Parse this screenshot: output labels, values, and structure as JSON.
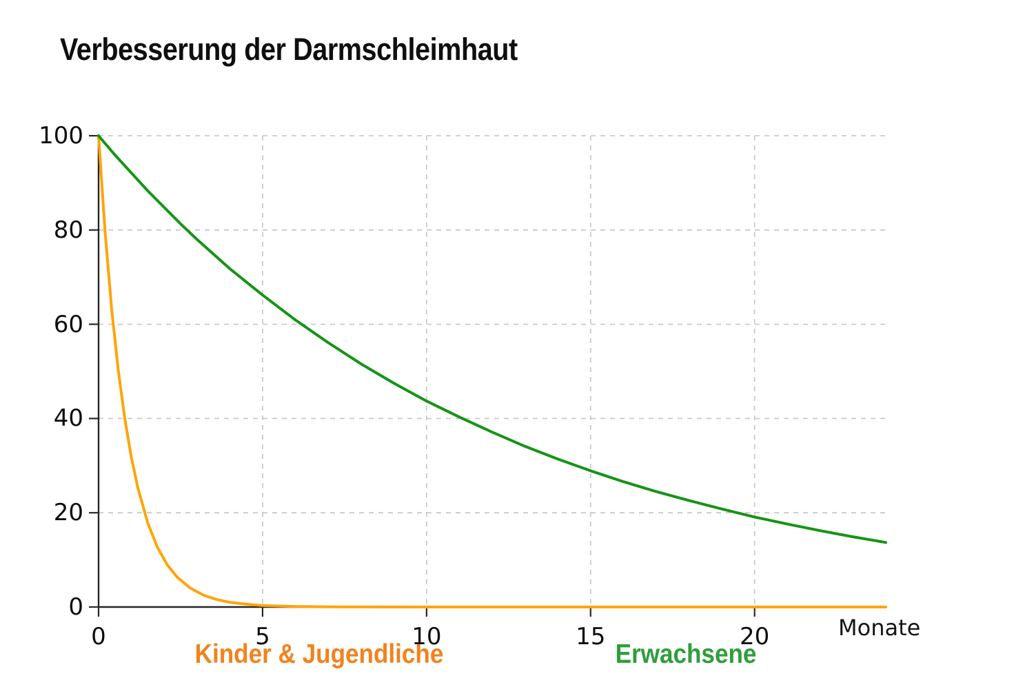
{
  "title": "Verbesserung der Darmschleimhaut",
  "chart_data": {
    "type": "line",
    "title": "Verbesserung der Darmschleimhaut",
    "xlabel": "Monate",
    "ylabel": "",
    "xlim": [
      0,
      24
    ],
    "ylim": [
      0,
      100
    ],
    "x_ticks": [
      0,
      5,
      10,
      15,
      20
    ],
    "y_ticks": [
      0,
      20,
      40,
      60,
      80,
      100
    ],
    "grid": true,
    "grid_style": "dashed",
    "grid_color": "#c9c9c9",
    "axis_color": "#262626",
    "legend_position": "below-axis",
    "series": [
      {
        "name": "Kinder & Jugendliche",
        "color": "#FFA409",
        "label_color": "#F2821E",
        "x": [
          0,
          0.2,
          0.4,
          0.6,
          0.8,
          1.0,
          1.2,
          1.5,
          1.8,
          2.1,
          2.4,
          2.8,
          3.2,
          3.6,
          4.0,
          4.5,
          5.0,
          6.0,
          7.0,
          8.0,
          10,
          14,
          18,
          21,
          24
        ],
        "values": [
          100,
          79.5,
          63.1,
          50.2,
          39.9,
          31.7,
          25.2,
          17.8,
          12.6,
          8.9,
          6.3,
          4.0,
          2.5,
          1.6,
          1.0,
          0.6,
          0.3,
          0.1,
          0.05,
          0.02,
          0,
          0,
          0,
          0,
          0
        ]
      },
      {
        "name": "Erwachsene",
        "color": "#159415",
        "label_color": "#2E9E3C",
        "x": [
          0,
          0.5,
          1,
          1.5,
          2,
          2.5,
          3,
          4,
          5,
          6,
          7,
          8,
          9,
          10,
          11,
          12,
          13,
          14,
          15,
          16,
          17,
          18,
          19,
          20,
          21,
          22,
          23,
          24
        ],
        "values": [
          100,
          95.9,
          92.1,
          88.3,
          84.8,
          81.3,
          78.0,
          71.8,
          66.2,
          60.9,
          56.1,
          51.6,
          47.5,
          43.7,
          40.3,
          37.1,
          34.1,
          31.4,
          28.9,
          26.6,
          24.5,
          22.6,
          20.8,
          19.1,
          17.6,
          16.2,
          14.9,
          13.7
        ]
      }
    ]
  }
}
